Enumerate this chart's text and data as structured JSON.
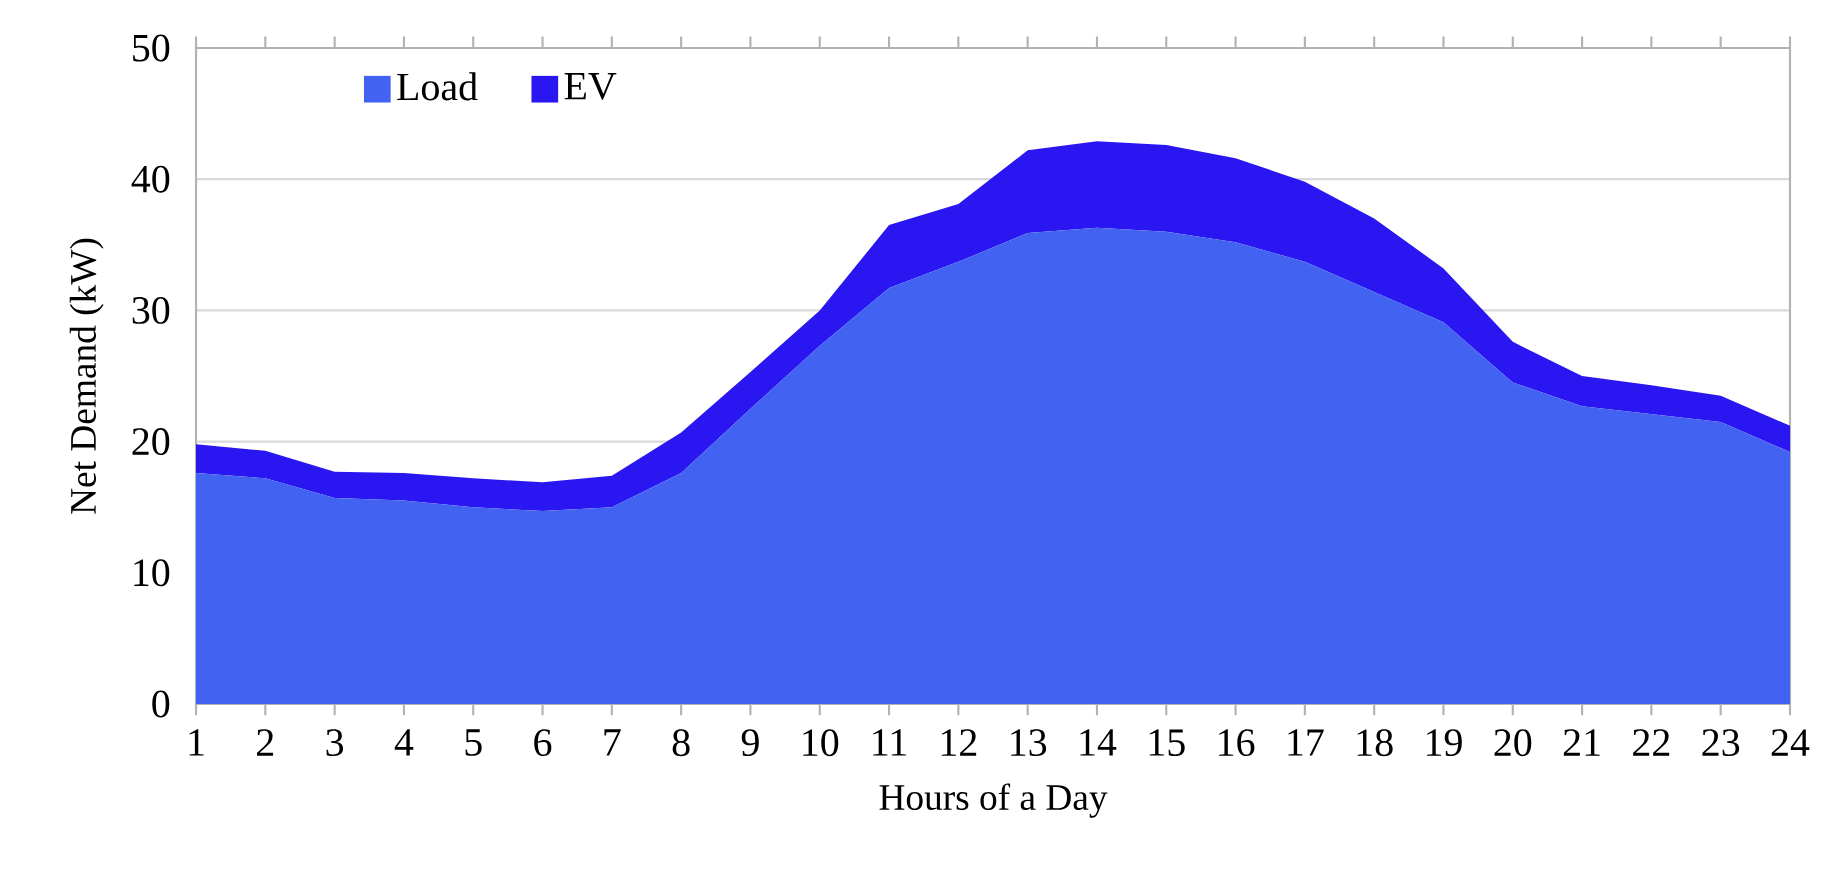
{
  "chart_data": {
    "type": "area",
    "xlabel": "Hours of a Day",
    "ylabel": "Net Demand (kW)",
    "categories": [
      "1",
      "2",
      "3",
      "4",
      "5",
      "6",
      "7",
      "8",
      "9",
      "10",
      "11",
      "12",
      "13",
      "14",
      "15",
      "16",
      "17",
      "18",
      "19",
      "20",
      "21",
      "22",
      "23",
      "24"
    ],
    "stacked": true,
    "ylim": [
      0,
      50
    ],
    "yticks": [
      0,
      10,
      20,
      30,
      40,
      50
    ],
    "grid": "y",
    "legend": "top left",
    "series": [
      {
        "name": "Load",
        "color": "#4262f2",
        "values": [
          17.6,
          17.2,
          15.7,
          15.5,
          15.0,
          14.7,
          15.0,
          17.6,
          22.5,
          27.3,
          31.7,
          33.7,
          35.9,
          36.3,
          36.0,
          35.2,
          33.7,
          31.4,
          29.1,
          24.5,
          22.7,
          22.1,
          21.5,
          19.2
        ]
      },
      {
        "name": "EV",
        "color": "#2a16f0",
        "values": [
          2.2,
          2.1,
          2.0,
          2.1,
          2.2,
          2.2,
          2.4,
          3.1,
          2.8,
          2.7,
          4.8,
          4.4,
          6.3,
          6.6,
          6.6,
          6.4,
          6.1,
          5.6,
          4.1,
          3.1,
          2.3,
          2.2,
          2.0,
          2.0
        ]
      }
    ]
  }
}
